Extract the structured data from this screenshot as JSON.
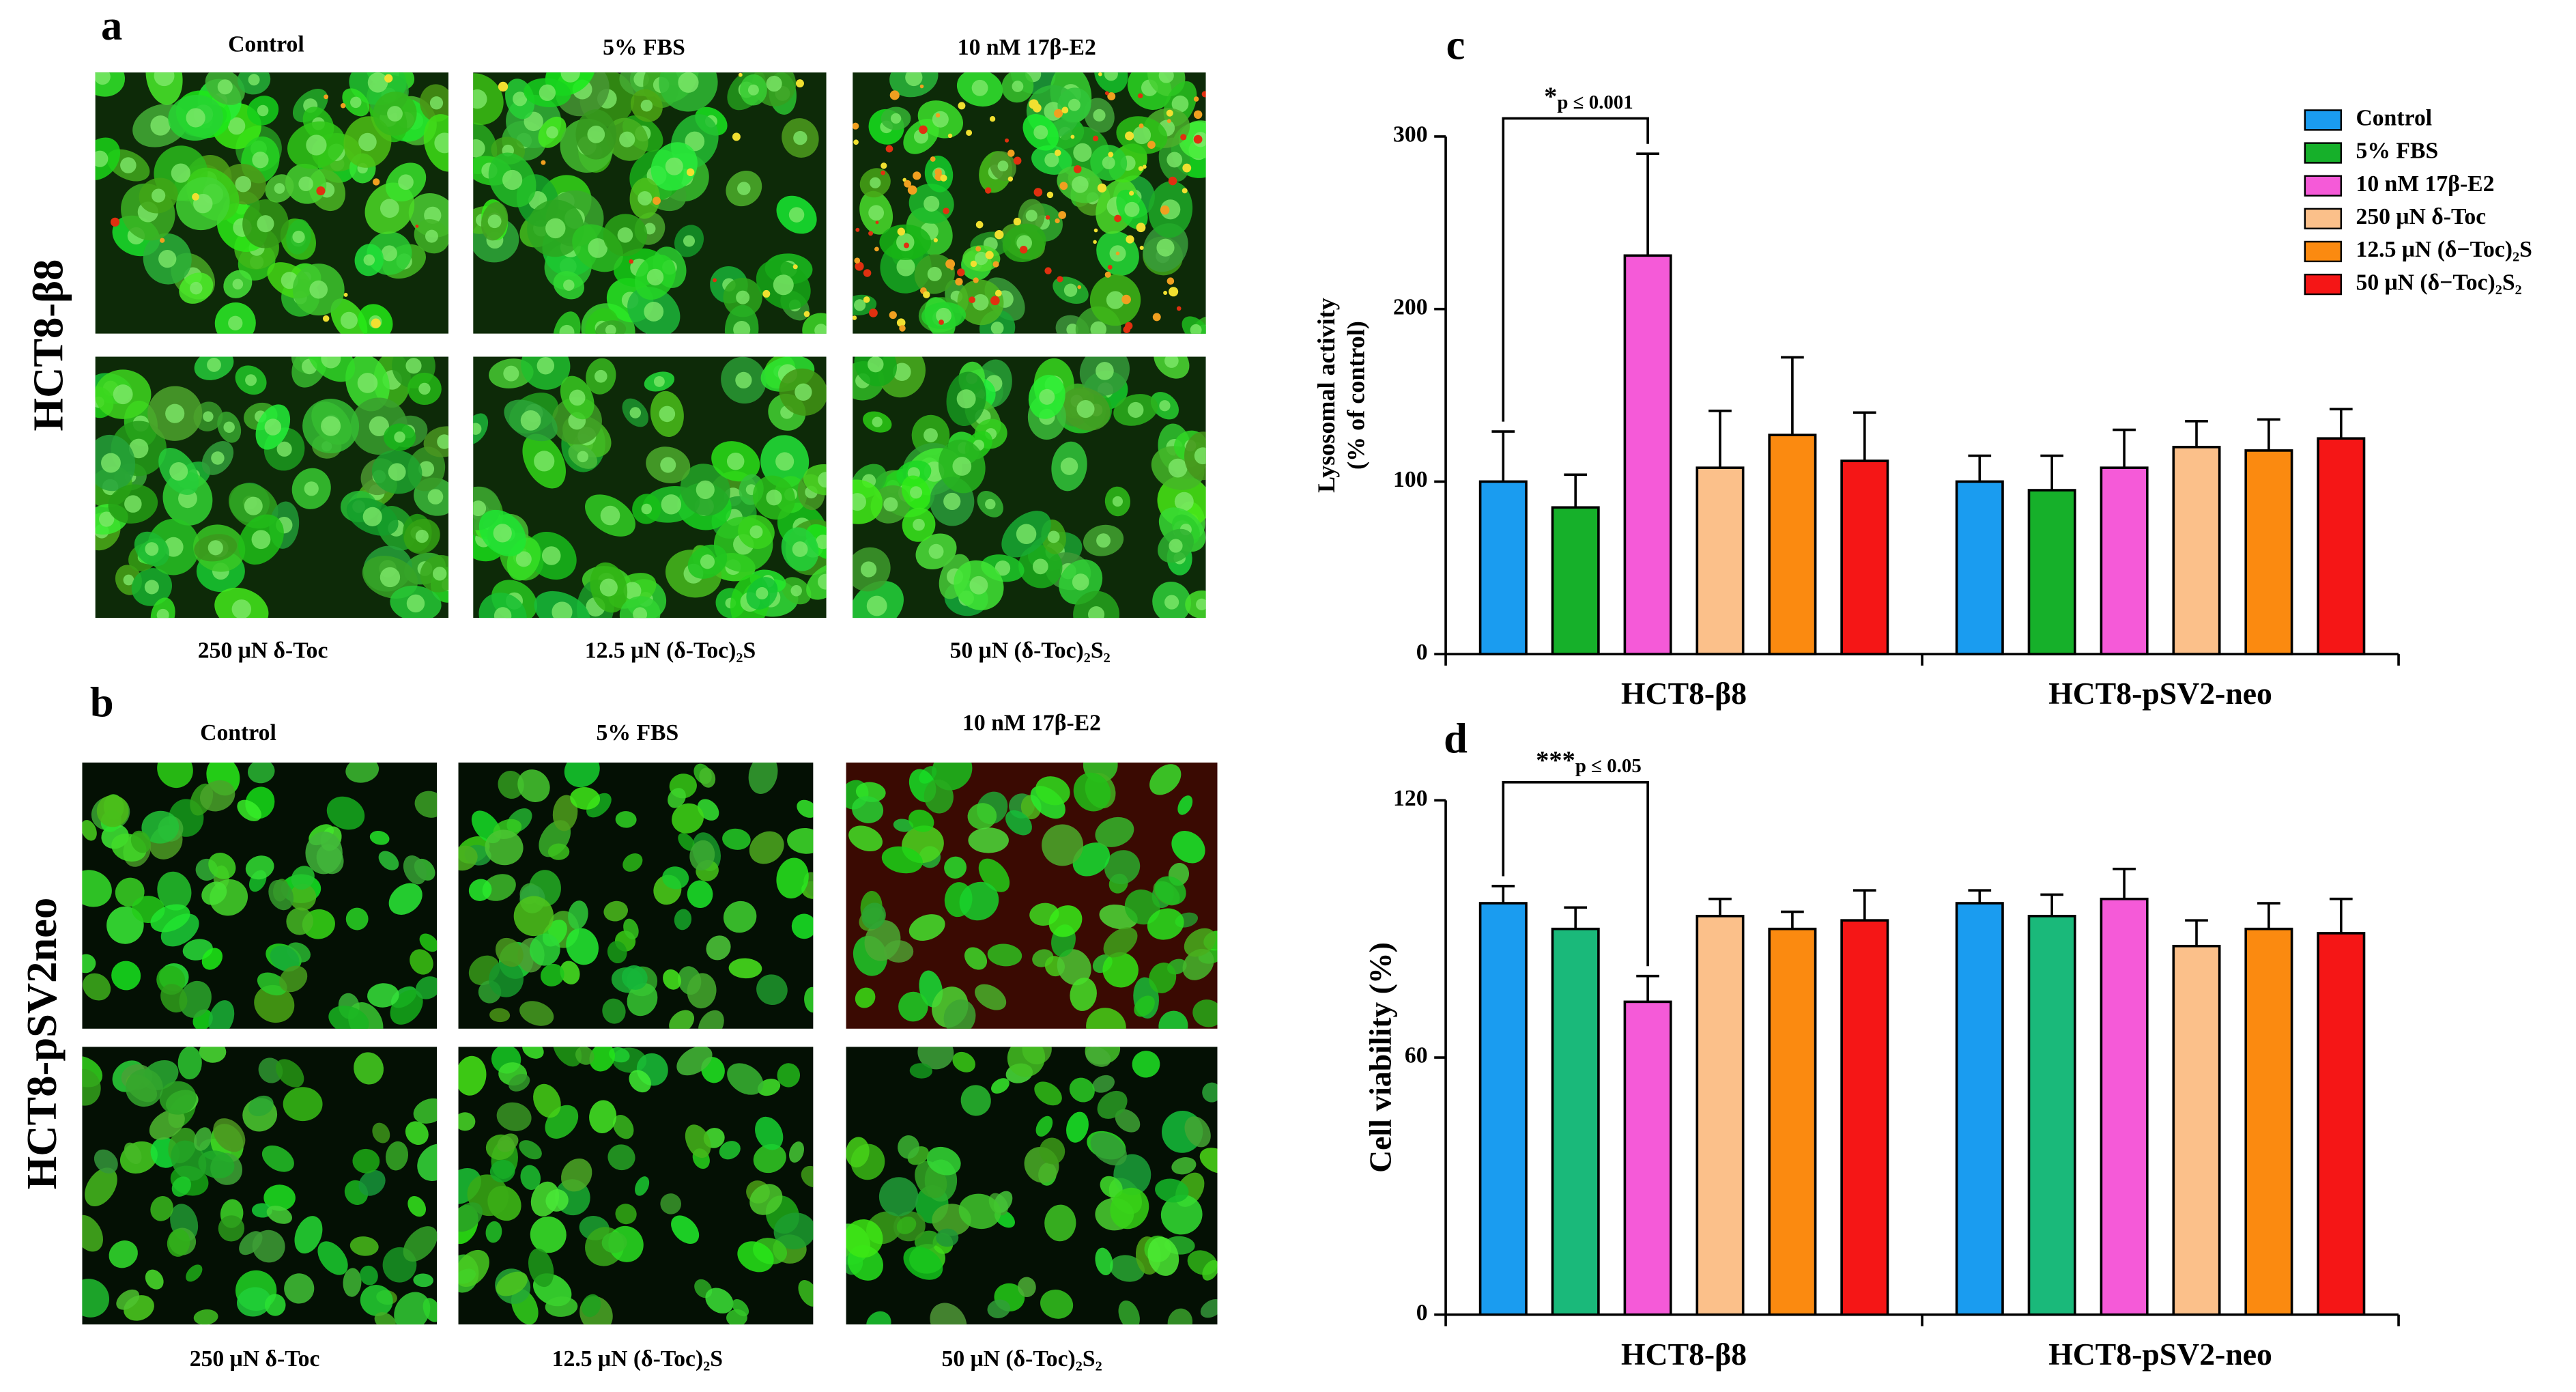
{
  "panels": [
    {
      "letter": "a",
      "row_label": "HCT8-β8",
      "top_labels": [
        "Control",
        "5% FBS",
        "10 nM 17β-E2"
      ],
      "bottom_labels": [
        "250 μN δ-Toc",
        "12.5 μN (δ-Toc)₂S",
        "50 μN (δ-Toc)₂S₂"
      ]
    },
    {
      "letter": "b",
      "row_label": "HCT8-pSV2neo",
      "top_labels": [
        "Control",
        "5% FBS",
        "10 nM 17β-E2"
      ],
      "bottom_labels": [
        "250 μN δ-Toc",
        "12.5 μN (δ-Toc)₂S",
        "50 μN (δ-Toc)₂S₂"
      ]
    }
  ],
  "chart_data": [
    {
      "type": "bar",
      "panel_label": "c",
      "ylabel": [
        "Lysosomal activity",
        "(% of control)"
      ],
      "categories": [
        "HCT8-β8",
        "HCT8-pSV2-neo"
      ],
      "ylim": [
        0,
        300
      ],
      "yticks": [
        0,
        100,
        200,
        300
      ],
      "legend": "top-right",
      "annotation": {
        "marker": "*",
        "text": "p ≤ 0.001"
      },
      "series": [
        {
          "name": "Control",
          "color": "#1a9cf0",
          "values": [
            100,
            100
          ],
          "errors": [
            29,
            15
          ]
        },
        {
          "name": "5% FBS",
          "color": "#16b02a",
          "values": [
            85,
            95
          ],
          "errors": [
            19,
            20
          ]
        },
        {
          "name": "10 nM 17β-E2",
          "color": "#f55ad8",
          "values": [
            231,
            108
          ],
          "errors": [
            59,
            22
          ]
        },
        {
          "name": "250 μN δ-Toc",
          "color": "#fbc08a",
          "values": [
            108,
            120
          ],
          "errors": [
            33,
            15
          ]
        },
        {
          "name": "12.5 μN (δ−Toc)₂S",
          "color": "#fb8a10",
          "values": [
            127,
            118
          ],
          "errors": [
            45,
            18
          ]
        },
        {
          "name": "50 μN (δ−Toc)₂S₂",
          "color": "#f51616",
          "values": [
            112,
            125
          ],
          "errors": [
            28,
            17
          ]
        }
      ]
    },
    {
      "type": "bar",
      "panel_label": "d",
      "ylabel": [
        "Cell viability (%)"
      ],
      "categories": [
        "HCT8-β8",
        "HCT8-pSV2-neo"
      ],
      "ylim": [
        0,
        120
      ],
      "yticks": [
        0,
        60,
        120
      ],
      "annotation": {
        "marker": "***",
        "text": "p ≤ 0.05"
      },
      "series": [
        {
          "color": "#1a9cf0",
          "values": [
            96,
            96
          ],
          "errors": [
            4,
            3
          ]
        },
        {
          "color": "#1ab97a",
          "values": [
            90,
            93
          ],
          "errors": [
            5,
            5
          ]
        },
        {
          "color": "#f55ad8",
          "values": [
            73,
            97
          ],
          "errors": [
            6,
            7
          ]
        },
        {
          "color": "#fbc08a",
          "values": [
            93,
            86
          ],
          "errors": [
            4,
            6
          ]
        },
        {
          "color": "#fb8a10",
          "values": [
            90,
            90
          ],
          "errors": [
            4,
            6
          ]
        },
        {
          "color": "#f51616",
          "values": [
            92,
            89
          ],
          "errors": [
            7,
            8
          ]
        }
      ]
    }
  ]
}
